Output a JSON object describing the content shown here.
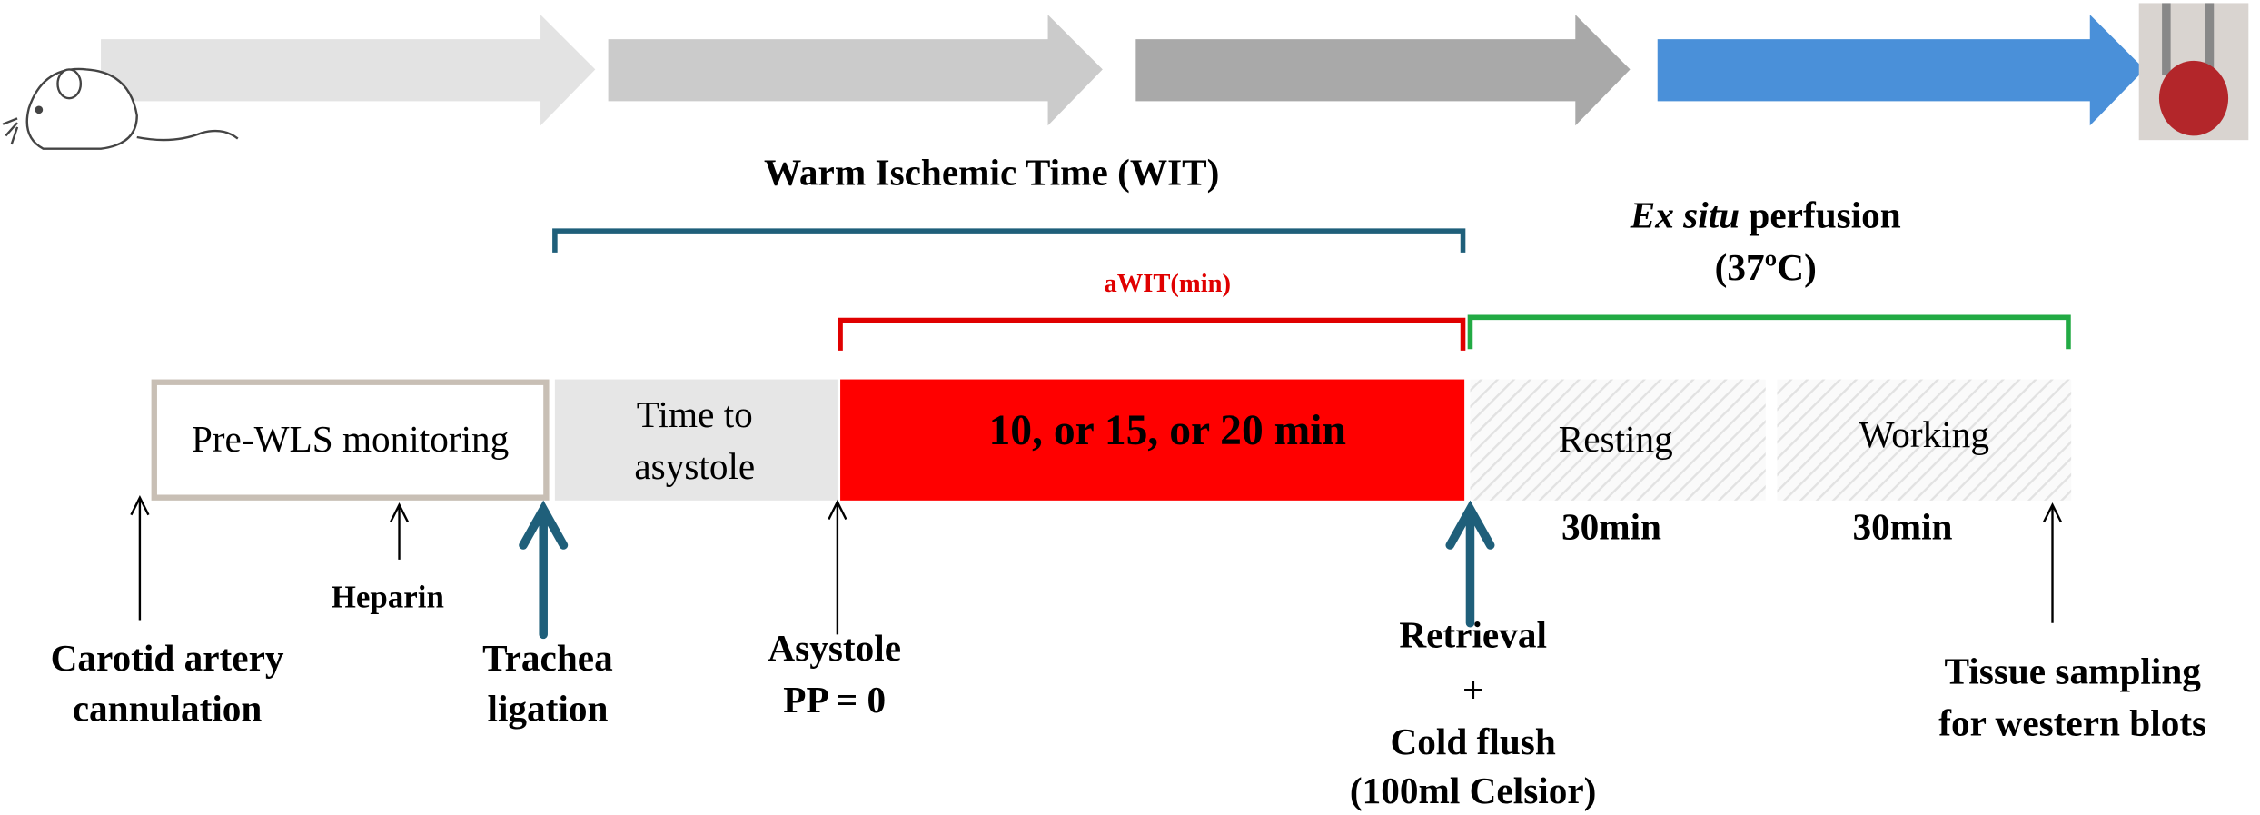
{
  "header": {
    "wit": "Warm Ischemic Time (WIT)",
    "awit": "aWIT(min)",
    "ex_situ": {
      "italic": "Ex situ",
      "rest": "perfusion",
      "line2": "(37ºC)"
    }
  },
  "boxes": {
    "pre_wls": "Pre-WLS monitoring",
    "time_to_asystole": [
      "Time to",
      "asystole"
    ],
    "awit_duration": "10, or 15, or 20 min",
    "resting": "Resting",
    "working": "Working"
  },
  "durations": {
    "resting": "30min",
    "working": "30min"
  },
  "events": {
    "carotid": [
      "Carotid artery",
      "cannulation"
    ],
    "heparin": "Heparin",
    "trachea": [
      "Trachea",
      "ligation"
    ],
    "asystole": [
      "Asystole",
      "PP = 0"
    ],
    "retrieval": [
      "Retrieval",
      "+",
      "Cold flush",
      "(100ml Celsior)"
    ],
    "tissue": [
      "Tissue sampling",
      "for western blots"
    ]
  }
}
